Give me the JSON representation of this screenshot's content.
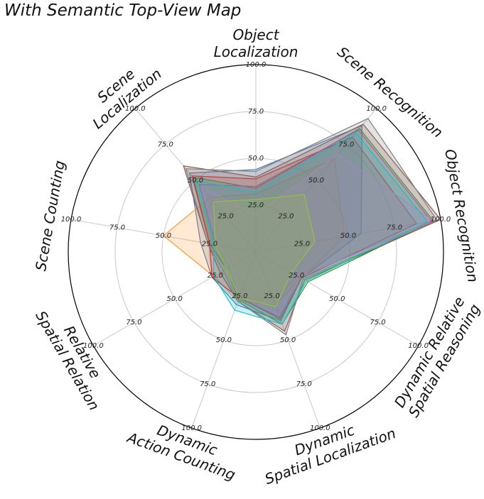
{
  "chart_data": {
    "type": "radar",
    "title": "With Semantic Top-View Map",
    "axes": [
      "Object Localization",
      "Scene Recognition",
      "Object Recognition",
      "Dynamic Relative Spatial Reasoning",
      "Dynamic Spatial Localization",
      "Dynamic Action Counting",
      "Relative Spatial Relation",
      "Scene Counting",
      "Scene Localization"
    ],
    "axis_label_lines": [
      [
        "Object",
        "Localization"
      ],
      [
        "Scene Recognition"
      ],
      [
        "Object Recognition"
      ],
      [
        "Dynamic Relative",
        "Spatial Reasoning"
      ],
      [
        "Dynamic",
        "Spatial Localization"
      ],
      [
        "Dynamic",
        "Action Counting"
      ],
      [
        "Relative",
        "Spatial Relation"
      ],
      [
        "Scene Counting"
      ],
      [
        "Scene",
        "Localization"
      ]
    ],
    "rlim": [
      0,
      100
    ],
    "rticks": [
      25,
      50,
      75,
      100
    ],
    "rtick_labels": [
      "25.0",
      "50.0",
      "75.0",
      "100.0"
    ],
    "grid": true,
    "series": [
      {
        "color": "#4c72b0",
        "values": [
          44,
          88,
          57,
          28,
          39,
          30,
          27,
          30,
          55
        ]
      },
      {
        "color": "#ff9933",
        "values": [
          31,
          65,
          48,
          28,
          30,
          28,
          26,
          50,
          38
        ]
      },
      {
        "color": "#2ca02c",
        "values": [
          34,
          86,
          96,
          32,
          41,
          27,
          18,
          25,
          52
        ]
      },
      {
        "color": "#d62728",
        "values": [
          39,
          80,
          87,
          28,
          38,
          26,
          27,
          25,
          53
        ]
      },
      {
        "color": "#9467bd",
        "values": [
          35,
          85,
          95,
          27,
          37,
          26,
          18,
          22,
          47
        ]
      },
      {
        "color": "#8c564b",
        "values": [
          40,
          89,
          100,
          30,
          45,
          28,
          22,
          26,
          60
        ]
      },
      {
        "color": "#e377c2",
        "values": [
          20,
          68,
          96,
          27,
          36,
          25,
          15,
          20,
          45
        ]
      },
      {
        "color": "#7f7f7f",
        "values": [
          43,
          93,
          98,
          29,
          47,
          28,
          20,
          26,
          58
        ]
      },
      {
        "color": "#bcbd22",
        "values": [
          28,
          40,
          32,
          22,
          31,
          26,
          18,
          22,
          35
        ]
      },
      {
        "color": "#17becf",
        "values": [
          32,
          83,
          93,
          31,
          41,
          33,
          26,
          23,
          50
        ]
      }
    ]
  }
}
